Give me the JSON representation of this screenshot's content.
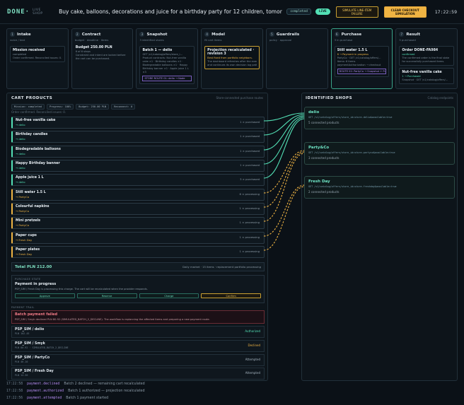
{
  "header": {
    "logo": "DONE·",
    "logo_sub": "LIVE SHOP",
    "title": "Buy cake, balloons, decorations and juice for a birthday party for 12 children, tomorrow by the requested ...",
    "status_badge": "completed",
    "live_badge": "LIVE",
    "simulate_button": "SIMULATE LINE-ITEM FAILURE",
    "clear_button": "CLEAR CHECKOUT SIMULATION",
    "clock": "17:22:59"
  },
  "pipeline": [
    {
      "num": "1",
      "name": "Intake",
      "sub": "voice / text",
      "card_title": "Mission received",
      "card_lines": [
        "completed",
        "Order confirmed. Reconciled issues: 0."
      ],
      "style": "plain"
    },
    {
      "num": "2",
      "name": "Contract",
      "sub": "budget · deadline · items",
      "card_title": "Budget 250.00 PLN",
      "card_lines": [
        "6 of 6 steps",
        "Constraint and intent are locked before",
        "the cart can be purchased."
      ],
      "style": "plain"
    },
    {
      "num": "3",
      "name": "Snapshot",
      "sub": "3 identified stores",
      "card_title": "Batch 1 — delio",
      "card_lines": [
        "GET /v1/catalog/offers/store_i...",
        "Product contracts: Nut-free vanilla",
        "cake ×1 · Birthday candles ×1 ·",
        "Biodegradable balloons ×1 · Happy",
        "Birthday banner ×1 · Apple juice 1 L",
        "×3"
      ],
      "extra": "STORE ROUTE 01: delio → Node",
      "style": "purple"
    },
    {
      "num": "4",
      "name": "Model",
      "sub": "fit cart items",
      "card_title": "Projection recalculated · revision 3",
      "card_lines": [
        "Best fixed from portfolio neighbors.",
        "The dashboard refreshes after the event",
        "and continues its own decision log path."
      ],
      "style": "amber"
    },
    {
      "num": "5",
      "name": "Guardrails",
      "sub": "policy · approval",
      "card_title": "",
      "card_lines": [],
      "style": "empty"
    },
    {
      "num": "6",
      "name": "Purchase",
      "sub": "3 in purchase",
      "card_title": "Still water 1.5 L",
      "card_lines": [
        "6 → Payment in progress",
        "PartyCo · GET /v1/catalog/offers/...",
        "Items: 6 items",
        "paymentAuthorization → checkout"
      ],
      "extra": "ROUTE 02: PartyCo → Snapshot + Purchase",
      "style": "active"
    },
    {
      "num": "7",
      "name": "Result",
      "sub": "5 purchased",
      "card_title": "Order DONE-FA984",
      "card_lines": [
        "confirmed",
        "The confirmed order is the final state",
        "for successfully purchased items."
      ],
      "card2_title": "Nut-free vanilla cake",
      "card2_lines": [
        "1 → Purchased",
        "Snapshot · GET /v1/catalog/offers/..."
      ],
      "style": "ok"
    }
  ],
  "cart": {
    "title": "CART PRODUCTS",
    "hint": "Store-connected purchase routes",
    "chips": [
      "Mission: completed",
      "Progress: 100%",
      "Budget: 250.00 PLN",
      "Reconnect: 0"
    ],
    "note": "Order confirmed. Reconciled issues: 0.",
    "items": [
      {
        "name": "Nut-free vanilla cake",
        "shop": "→ delio",
        "status": "1 × purchased",
        "state": "done"
      },
      {
        "name": "Birthday candles",
        "shop": "→ delio",
        "status": "1 × purchased",
        "state": "done"
      },
      {
        "name": "Biodegradable balloons",
        "shop": "→ delio",
        "status": "1 × purchased",
        "state": "done"
      },
      {
        "name": "Happy Birthday banner",
        "shop": "→ delio",
        "status": "1 × purchased",
        "state": "done"
      },
      {
        "name": "Apple juice 1 L",
        "shop": "→ delio",
        "status": "3 × purchased",
        "state": "done"
      },
      {
        "name": "Still water 1.5 L",
        "shop": "→ PartyCo",
        "status": "6 × processing",
        "state": "proc"
      },
      {
        "name": "Colourful napkins",
        "shop": "→ PartyCo",
        "status": "1 × processing",
        "state": "proc"
      },
      {
        "name": "Mini pretzels",
        "shop": "→ PartyCo",
        "status": "1 × processing",
        "state": "proc"
      },
      {
        "name": "Paper cups",
        "shop": "→ Fresh Day",
        "status": "1 × processing",
        "state": "proc"
      },
      {
        "name": "Paper plates",
        "shop": "→ Fresh Day",
        "status": "1 × processing",
        "state": "proc"
      }
    ],
    "total_label": "Total PLN 212.00",
    "total_note": "Daily market · 15 items · replacement portfolio processing",
    "payment_kicker": "PURCHASE STATE",
    "payment_title": "Payment in progress",
    "payment_desc": "PSP_SIM / Fresh Day is processing this charge. The cart will be recalculated when the provider responds.",
    "payment_buttons": [
      "Approve",
      "Reserve",
      "Charge",
      "Confirm"
    ],
    "fail_kicker": "PAYMENT TRAIL",
    "fail_title": "Batch payment failed",
    "fail_desc": "PSP_SIM / Smyk declined PLN 80.92 (SIMULATED_BATCH_2_DECLINE). The workflow is replanning the affected items and preparing a new payment route.",
    "psps": [
      {
        "name": "PSP_SIM / delio",
        "sub": "PLN 102.45",
        "status": "Authorized",
        "cls": "st-auth"
      },
      {
        "name": "PSP_SIM / Smyk",
        "sub": "PLN 80.92 · SIMULATED_BATCH_2_DECLINE",
        "status": "Declined",
        "cls": "st-dec"
      },
      {
        "name": "PSP_SIM / PartyCo",
        "sub": "PLN 46.10",
        "status": "Attempted",
        "cls": "st-att"
      },
      {
        "name": "PSP_SIM / Fresh Day",
        "sub": "PLN 14.30",
        "status": "Attempted",
        "cls": "st-att"
      }
    ]
  },
  "shops": {
    "title": "IDENTIFIED SHOPS",
    "hint": "Catalog endpoints",
    "items": [
      {
        "name": "delio",
        "url": "GET /v1/catalog/offers/store_id=store-delio&available=true",
        "count": "5 connected products"
      },
      {
        "name": "Party&Co",
        "url": "GET /v1/catalog/offers/store_id=store-partyco&available=true",
        "count": "3 connected products"
      },
      {
        "name": "Fresh Day",
        "url": "GET /v1/catalog/offers/store_id=store-freshday&available=true",
        "count": "2 connected products"
      }
    ]
  },
  "log": [
    {
      "time": "17:22:58",
      "event": "payment.declined",
      "msg": "Batch 2 declined — remaining cart recalculated"
    },
    {
      "time": "17:22:58",
      "event": "payment.authorized",
      "msg": "Batch 1 authorized — projection recalculated"
    },
    {
      "time": "17:22:56",
      "event": "payment.attempted",
      "msg": "Batch 1 payment started"
    }
  ],
  "colors": {
    "accent": "#53e0b5",
    "warning": "#f0b443",
    "error": "#f07a86",
    "purple": "#b48bf0"
  }
}
